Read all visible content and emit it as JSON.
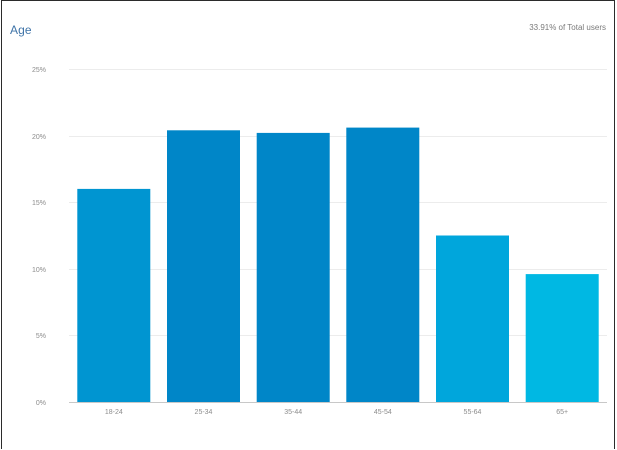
{
  "title": "Age",
  "summary": "33.91% of Total users",
  "chart_data": {
    "type": "bar",
    "categories": [
      "18-24",
      "25-34",
      "35-44",
      "45-54",
      "55-64",
      "65+"
    ],
    "values": [
      16.0,
      20.4,
      20.2,
      20.6,
      12.5,
      9.6
    ],
    "ylim": [
      0,
      25
    ],
    "yticks": [
      0,
      5,
      10,
      15,
      20,
      25
    ],
    "yticks_labels": [
      "0%",
      "5%",
      "10%",
      "15%",
      "20%",
      "25%"
    ],
    "grid": true,
    "colors": [
      "#0095d1",
      "#0086c8",
      "#0086c8",
      "#0086c8",
      "#00a6dc",
      "#00b8e3"
    ]
  }
}
